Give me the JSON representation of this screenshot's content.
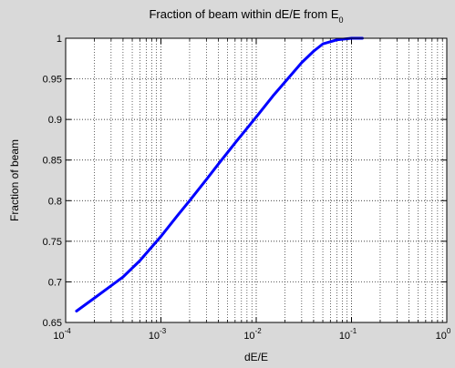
{
  "chart_data": {
    "type": "line",
    "title": "Fraction of beam within dE/E from E",
    "title_subscript": "0",
    "xlabel": "dE/E",
    "ylabel": "Fraction of beam",
    "x_scale": "log",
    "xlim": [
      0.0001,
      1
    ],
    "ylim": [
      0.65,
      1
    ],
    "x_ticks": [
      0.0001,
      0.001,
      0.01,
      0.1,
      1
    ],
    "x_tick_labels": [
      {
        "base": "10",
        "exp": "-4"
      },
      {
        "base": "10",
        "exp": "-3"
      },
      {
        "base": "10",
        "exp": "-2"
      },
      {
        "base": "10",
        "exp": "-1"
      },
      {
        "base": "10",
        "exp": "0"
      }
    ],
    "y_ticks": [
      0.65,
      0.7,
      0.75,
      0.8,
      0.85,
      0.9,
      0.95,
      1
    ],
    "y_tick_labels": [
      "0.65",
      "0.7",
      "0.75",
      "0.8",
      "0.85",
      "0.9",
      "0.95",
      "1"
    ],
    "grid": true,
    "series": [
      {
        "color": "#0000ff",
        "x": [
          0.00013,
          0.0002,
          0.0004,
          0.0006,
          0.001,
          0.0015,
          0.002,
          0.003,
          0.004,
          0.006,
          0.008,
          0.01,
          0.015,
          0.02,
          0.03,
          0.04,
          0.05,
          0.07,
          0.1,
          0.13
        ],
        "y": [
          0.664,
          0.68,
          0.706,
          0.726,
          0.756,
          0.782,
          0.8,
          0.826,
          0.845,
          0.871,
          0.889,
          0.903,
          0.929,
          0.946,
          0.97,
          0.984,
          0.993,
          0.998,
          1.0,
          1.0
        ]
      }
    ]
  }
}
